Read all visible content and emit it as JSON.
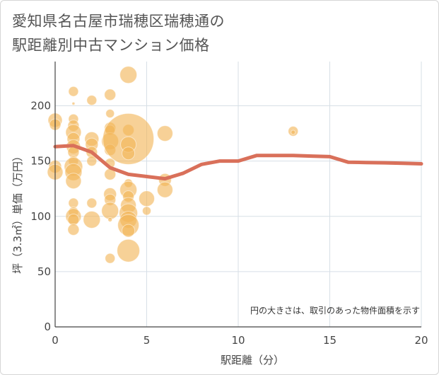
{
  "chart_data": {
    "type": "scatter",
    "title_lines": [
      "愛知県名古屋市瑞穂区瑞穂通の",
      "駅距離別中古マンション価格"
    ],
    "xlabel": "駅距離（分）",
    "ylabel": "坪（3.3㎡）単価（万円）",
    "xlim": [
      0,
      20
    ],
    "ylim": [
      0,
      240
    ],
    "x_ticks": [
      0,
      5,
      10,
      15,
      20
    ],
    "y_ticks": [
      0,
      50,
      100,
      150,
      200
    ],
    "grid": true,
    "note": "円の大きさは、取引のあった物件面積を示す",
    "colors": {
      "bubble": "#f2b457",
      "line": "#d9705a",
      "grid": "#d7dfe6",
      "axis": "#444444"
    },
    "bubbles": [
      {
        "x": 0,
        "y": 187,
        "s": 10
      },
      {
        "x": 0,
        "y": 183,
        "s": 8
      },
      {
        "x": 0,
        "y": 145,
        "s": 9
      },
      {
        "x": 0,
        "y": 140,
        "s": 11
      },
      {
        "x": 1,
        "y": 213,
        "s": 7
      },
      {
        "x": 1,
        "y": 202,
        "s": 2
      },
      {
        "x": 1,
        "y": 188,
        "s": 7
      },
      {
        "x": 1,
        "y": 182,
        "s": 8
      },
      {
        "x": 1,
        "y": 176,
        "s": 11
      },
      {
        "x": 1,
        "y": 170,
        "s": 9
      },
      {
        "x": 1,
        "y": 163,
        "s": 10
      },
      {
        "x": 1,
        "y": 158,
        "s": 8
      },
      {
        "x": 1,
        "y": 150,
        "s": 7
      },
      {
        "x": 1,
        "y": 145,
        "s": 13
      },
      {
        "x": 1,
        "y": 140,
        "s": 12
      },
      {
        "x": 1,
        "y": 132,
        "s": 11
      },
      {
        "x": 1,
        "y": 112,
        "s": 7
      },
      {
        "x": 1,
        "y": 104,
        "s": 7
      },
      {
        "x": 1,
        "y": 100,
        "s": 11
      },
      {
        "x": 1,
        "y": 97,
        "s": 8
      },
      {
        "x": 1,
        "y": 88,
        "s": 8
      },
      {
        "x": 2,
        "y": 205,
        "s": 7
      },
      {
        "x": 2,
        "y": 170,
        "s": 10
      },
      {
        "x": 2,
        "y": 165,
        "s": 9
      },
      {
        "x": 2,
        "y": 158,
        "s": 8
      },
      {
        "x": 2,
        "y": 150,
        "s": 7
      },
      {
        "x": 2,
        "y": 112,
        "s": 7
      },
      {
        "x": 2,
        "y": 97,
        "s": 12
      },
      {
        "x": 3,
        "y": 210,
        "s": 8
      },
      {
        "x": 3,
        "y": 193,
        "s": 6
      },
      {
        "x": 3,
        "y": 180,
        "s": 8
      },
      {
        "x": 3,
        "y": 178,
        "s": 7
      },
      {
        "x": 3,
        "y": 168,
        "s": 12
      },
      {
        "x": 3,
        "y": 160,
        "s": 8
      },
      {
        "x": 3,
        "y": 148,
        "s": 7
      },
      {
        "x": 3,
        "y": 138,
        "s": 8
      },
      {
        "x": 3,
        "y": 120,
        "s": 9
      },
      {
        "x": 3,
        "y": 115,
        "s": 8
      },
      {
        "x": 3,
        "y": 105,
        "s": 12
      },
      {
        "x": 3,
        "y": 97,
        "s": 3
      },
      {
        "x": 3,
        "y": 62,
        "s": 7
      },
      {
        "x": 4,
        "y": 228,
        "s": 12
      },
      {
        "x": 4,
        "y": 178,
        "s": 8
      },
      {
        "x": 4,
        "y": 170,
        "s": 36
      },
      {
        "x": 4,
        "y": 165,
        "s": 11
      },
      {
        "x": 4,
        "y": 157,
        "s": 9
      },
      {
        "x": 4,
        "y": 130,
        "s": 6
      },
      {
        "x": 4,
        "y": 124,
        "s": 12
      },
      {
        "x": 4,
        "y": 118,
        "s": 8
      },
      {
        "x": 4,
        "y": 110,
        "s": 11
      },
      {
        "x": 4,
        "y": 103,
        "s": 13
      },
      {
        "x": 4,
        "y": 97,
        "s": 12
      },
      {
        "x": 4,
        "y": 92,
        "s": 15
      },
      {
        "x": 4,
        "y": 87,
        "s": 9
      },
      {
        "x": 4,
        "y": 69,
        "s": 16
      },
      {
        "x": 5,
        "y": 116,
        "s": 11
      },
      {
        "x": 5,
        "y": 105,
        "s": 6
      },
      {
        "x": 6,
        "y": 175,
        "s": 11
      },
      {
        "x": 6,
        "y": 133,
        "s": 9
      },
      {
        "x": 6,
        "y": 124,
        "s": 11
      },
      {
        "x": 13,
        "y": 177,
        "s": 7
      },
      {
        "x": 13,
        "y": 176,
        "s": 3
      }
    ],
    "line": {
      "x": [
        0,
        1,
        2,
        3,
        4,
        5,
        6,
        7,
        8,
        9,
        10,
        11,
        12,
        13,
        14,
        15,
        16,
        17,
        18,
        19,
        20
      ],
      "y": [
        163,
        164,
        158,
        144,
        138,
        136,
        134,
        139,
        147,
        150,
        150,
        155,
        155,
        155,
        154.5,
        154,
        149,
        148.7,
        148.4,
        148,
        147.5
      ]
    }
  }
}
